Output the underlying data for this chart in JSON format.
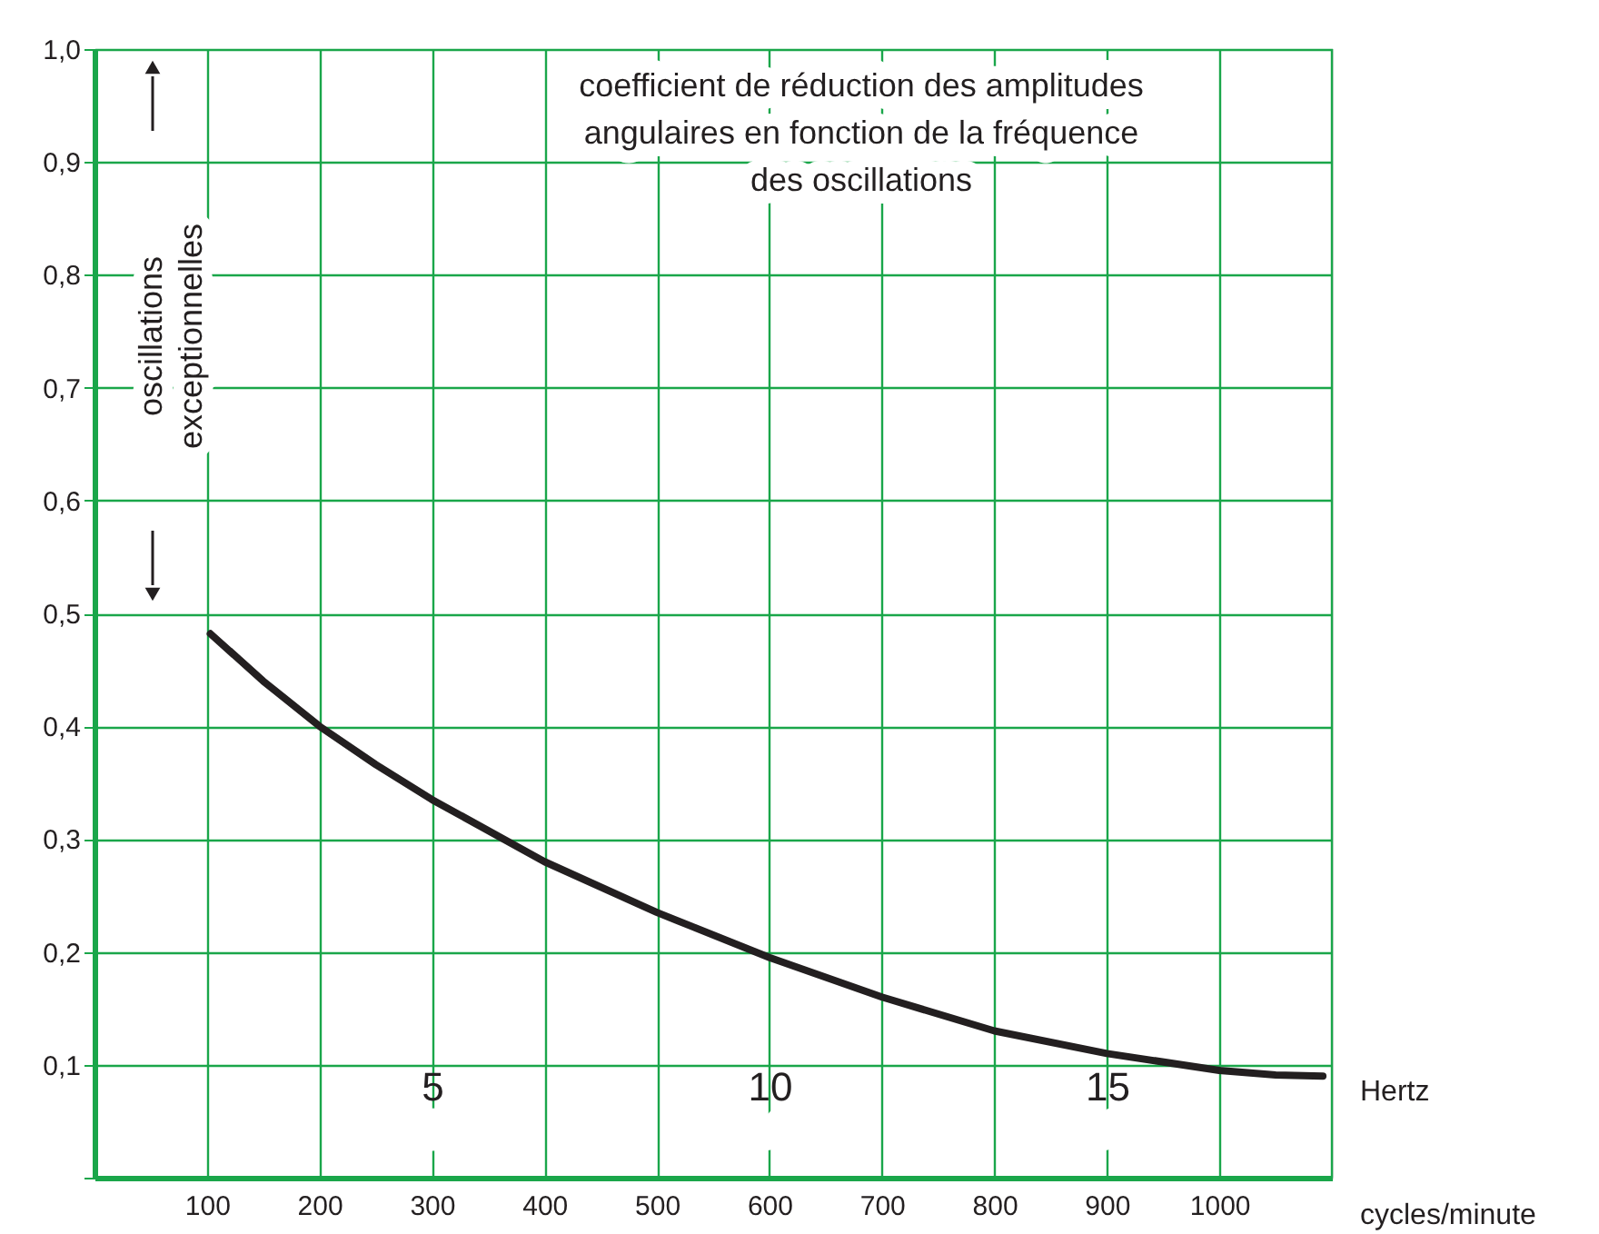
{
  "chart_data": {
    "type": "line",
    "xlabel": "cycles/minute",
    "x2label": "Hertz",
    "annotations": [
      "coefficient de réduction des amplitudes\nangulaires en fonction de la fréquence\ndes oscillations",
      "oscillations\nexceptionnelles"
    ],
    "x": [
      103,
      150,
      200,
      250,
      300,
      400,
      500,
      600,
      700,
      800,
      900,
      1000,
      1050,
      1092
    ],
    "series": [
      {
        "color": "#231f20",
        "values": [
          0.482,
          0.44,
          0.4,
          0.366,
          0.335,
          0.28,
          0.235,
          0.195,
          0.16,
          0.13,
          0.11,
          0.095,
          0.091,
          0.09
        ]
      }
    ],
    "xlim": [
      0,
      1100
    ],
    "xticks": [
      100,
      200,
      300,
      400,
      500,
      600,
      700,
      800,
      900,
      1000
    ],
    "x2lim": [
      0,
      18.333
    ],
    "x2ticks": [
      5,
      10,
      15
    ],
    "ylim": [
      0,
      1
    ],
    "yticks": [
      {
        "value": 0,
        "label": null
      },
      {
        "value": 0.1,
        "label": "0,1"
      },
      {
        "value": 0.2,
        "label": "0,2"
      },
      {
        "value": 0.3,
        "label": "0,3"
      },
      {
        "value": 0.4,
        "label": "0,4"
      },
      {
        "value": 0.5,
        "label": "0,5"
      },
      {
        "value": 0.6,
        "label": "0,6"
      },
      {
        "value": 0.7,
        "label": "0,7"
      },
      {
        "value": 0.8,
        "label": "0,8"
      },
      {
        "value": 0.9,
        "label": "0,9"
      },
      {
        "value": 1.0,
        "label": "1,0"
      }
    ],
    "grid": true,
    "line_style": "solid",
    "marker": "none",
    "legend": false
  }
}
